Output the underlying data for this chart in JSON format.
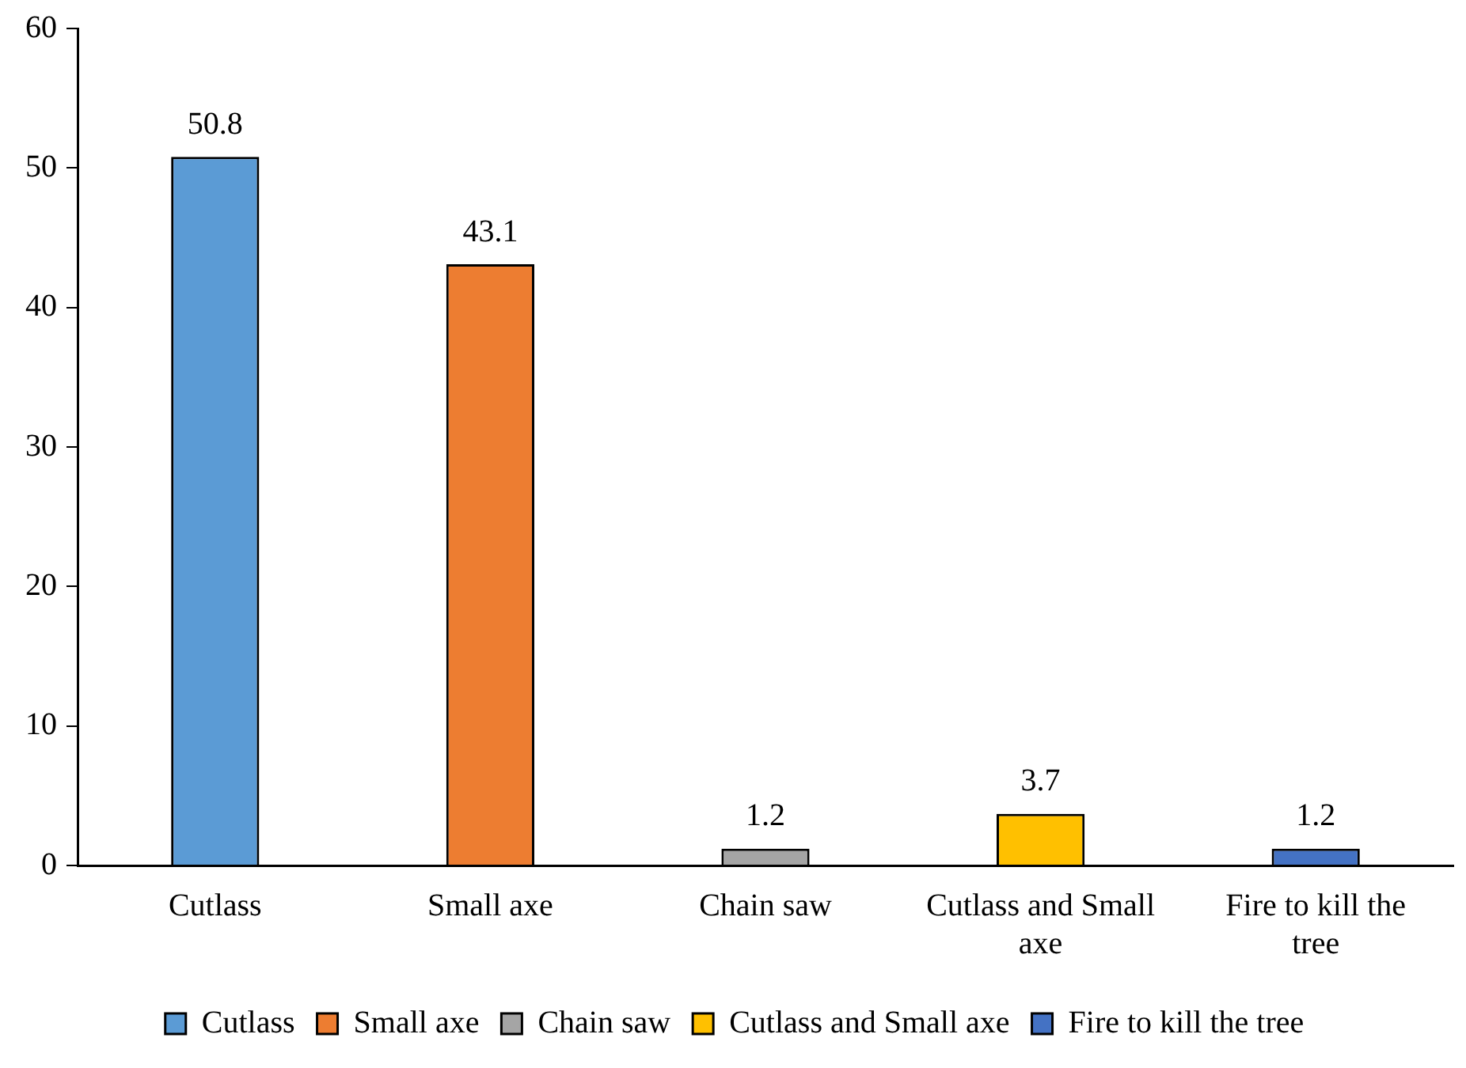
{
  "chart_data": {
    "type": "bar",
    "categories": [
      "Cutlass",
      "Small axe",
      "Chain saw",
      "Cutlass and Small axe",
      "Fire to kill the tree"
    ],
    "series": [
      {
        "name": "Cutlass",
        "color": "#5b9bd5",
        "values": [
          50.8,
          null,
          null,
          null,
          null
        ]
      },
      {
        "name": "Small axe",
        "color": "#ed7d31",
        "values": [
          null,
          43.1,
          null,
          null,
          null
        ]
      },
      {
        "name": "Chain saw",
        "color": "#a5a5a5",
        "values": [
          null,
          null,
          1.2,
          null,
          null
        ]
      },
      {
        "name": "Cutlass and Small axe",
        "color": "#ffc000",
        "values": [
          null,
          null,
          null,
          3.7,
          null
        ]
      },
      {
        "name": "Fire to kill the tree",
        "color": "#4472c4",
        "values": [
          null,
          null,
          null,
          null,
          1.2
        ]
      }
    ],
    "ylim": [
      0,
      60
    ],
    "yticks": [
      0,
      10,
      20,
      30,
      40,
      50,
      60
    ],
    "grid": false,
    "legend": "bottom",
    "data_labels": true
  }
}
